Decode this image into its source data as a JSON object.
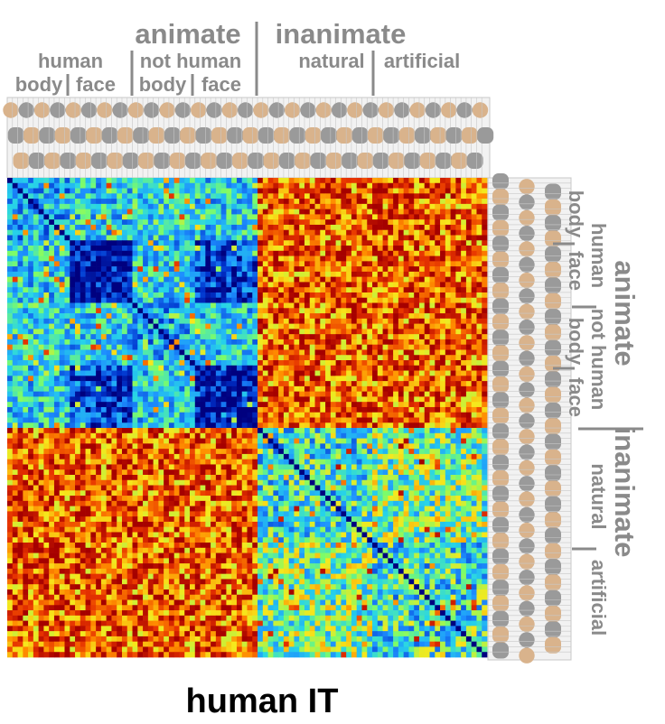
{
  "chart_data": {
    "type": "heatmap",
    "title": "human IT",
    "n_stimuli": 92,
    "colormap": [
      "#00007f",
      "#0033cc",
      "#1e90ff",
      "#27d4e8",
      "#7cfc6a",
      "#f6e81c",
      "#ff8c00",
      "#e63200",
      "#a50000"
    ],
    "stimulus_categories": [
      {
        "level": "superordinate",
        "label": "animate",
        "range": [
          0,
          47
        ]
      },
      {
        "level": "superordinate",
        "label": "inanimate",
        "range": [
          48,
          91
        ]
      },
      {
        "level": "mid",
        "label": "human",
        "range": [
          0,
          23
        ]
      },
      {
        "level": "mid",
        "label": "not human",
        "range": [
          24,
          47
        ]
      },
      {
        "level": "mid",
        "label": "natural",
        "range": [
          48,
          69
        ]
      },
      {
        "level": "mid",
        "label": "artificial",
        "range": [
          70,
          91
        ]
      },
      {
        "level": "basic",
        "label": "body",
        "range": [
          0,
          11
        ]
      },
      {
        "level": "basic",
        "label": "face",
        "range": [
          12,
          23
        ]
      },
      {
        "level": "basic",
        "label": "body",
        "range": [
          24,
          35
        ]
      },
      {
        "level": "basic",
        "label": "face",
        "range": [
          36,
          47
        ]
      }
    ]
  },
  "labels": {
    "animate": "animate",
    "inanimate": "inanimate",
    "human": "human",
    "not_human": "not human",
    "natural": "natural",
    "artificial": "artificial",
    "body": "body",
    "face": "face"
  },
  "colors": {
    "label_gray": "#8a8a8a",
    "stimulus_strip_bg": "#f2f2f2",
    "stimulus_strip_line": "#c8c8c8"
  }
}
